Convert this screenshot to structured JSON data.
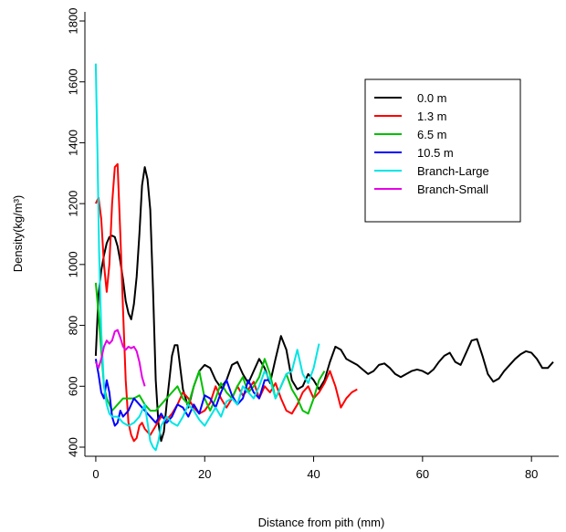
{
  "chart_data": {
    "type": "line",
    "xlabel": "Distance from pith (mm)",
    "ylabel": "Density(kg/m³)",
    "xlim": [
      -2,
      85
    ],
    "ylim": [
      370,
      1830
    ],
    "x_ticks": [
      0,
      20,
      40,
      60,
      80
    ],
    "y_ticks": [
      400,
      600,
      800,
      1000,
      1200,
      1400,
      1600,
      1800
    ],
    "grid": false,
    "legend_position": "top-right",
    "series": [
      {
        "name": "0.0 m",
        "color": "#000000",
        "x": [
          0,
          0.5,
          1,
          1.5,
          2,
          2.5,
          3,
          3.5,
          4,
          4.5,
          5,
          5.5,
          6,
          6.5,
          7,
          7.5,
          8,
          8.5,
          9,
          9.5,
          10,
          10.5,
          11,
          11.5,
          12,
          12.5,
          13,
          13.5,
          14,
          14.5,
          15,
          16,
          17,
          18,
          19,
          20,
          21,
          22,
          23,
          24,
          25,
          26,
          27,
          28,
          29,
          30,
          31,
          32,
          33,
          34,
          35,
          36,
          37,
          38,
          39,
          40,
          41,
          42,
          43,
          44,
          45,
          46,
          47,
          48,
          49,
          50,
          51,
          52,
          53,
          54,
          55,
          56,
          57,
          58,
          59,
          60,
          61,
          62,
          63,
          64,
          65,
          66,
          67,
          68,
          69,
          70,
          71,
          72,
          73,
          74,
          75,
          76,
          77,
          78,
          79,
          80,
          81,
          82,
          83,
          84
        ],
        "values": [
          700,
          900,
          980,
          1030,
          1070,
          1090,
          1095,
          1090,
          1060,
          1010,
          950,
          880,
          840,
          820,
          870,
          960,
          1100,
          1260,
          1320,
          1280,
          1180,
          920,
          620,
          480,
          420,
          450,
          540,
          620,
          700,
          735,
          735,
          590,
          530,
          600,
          650,
          670,
          660,
          620,
          595,
          620,
          670,
          680,
          640,
          610,
          650,
          690,
          660,
          610,
          690,
          765,
          720,
          620,
          590,
          600,
          640,
          620,
          590,
          620,
          680,
          730,
          720,
          690,
          680,
          670,
          655,
          640,
          650,
          670,
          675,
          660,
          640,
          630,
          640,
          650,
          655,
          650,
          640,
          655,
          680,
          700,
          710,
          680,
          670,
          710,
          750,
          755,
          700,
          640,
          615,
          625,
          650,
          670,
          690,
          705,
          715,
          710,
          690,
          660,
          660,
          680
        ]
      },
      {
        "name": "1.3 m",
        "color": "#ff0000",
        "x": [
          0,
          0.5,
          1,
          1.5,
          2,
          2.5,
          3,
          3.5,
          4,
          4.5,
          5,
          5.5,
          6,
          6.5,
          7,
          7.5,
          8,
          8.5,
          9,
          10,
          11,
          12,
          13,
          14,
          15,
          16,
          17,
          18,
          19,
          20,
          21,
          22,
          23,
          24,
          25,
          26,
          27,
          28,
          29,
          30,
          31,
          32,
          33,
          34,
          35,
          36,
          37,
          38,
          39,
          40,
          41,
          42,
          43,
          44,
          45,
          46,
          47,
          48
        ],
        "values": [
          1200,
          1220,
          1150,
          1000,
          910,
          1000,
          1200,
          1320,
          1330,
          1100,
          850,
          620,
          480,
          440,
          420,
          430,
          470,
          480,
          460,
          440,
          470,
          500,
          490,
          510,
          540,
          580,
          560,
          530,
          510,
          520,
          545,
          600,
          560,
          530,
          560,
          600,
          570,
          590,
          615,
          560,
          600,
          580,
          610,
          560,
          520,
          510,
          540,
          580,
          600,
          560,
          580,
          610,
          650,
          600,
          530,
          560,
          580,
          590
        ]
      },
      {
        "name": "6.5 m",
        "color": "#00c000",
        "x": [
          0,
          0.5,
          1,
          1.5,
          2,
          3,
          4,
          5,
          6,
          7,
          8,
          9,
          10,
          11,
          12,
          13,
          14,
          15,
          16,
          17,
          18,
          19,
          20,
          21,
          22,
          23,
          24,
          25,
          26,
          27,
          28,
          29,
          30,
          31,
          32,
          33,
          34,
          35,
          36,
          37,
          38,
          39,
          40,
          41,
          42
        ],
        "values": [
          940,
          840,
          720,
          600,
          560,
          520,
          540,
          560,
          560,
          560,
          570,
          540,
          520,
          520,
          540,
          560,
          580,
          600,
          560,
          540,
          600,
          650,
          560,
          520,
          560,
          610,
          580,
          560,
          600,
          630,
          580,
          600,
          630,
          690,
          640,
          560,
          600,
          640,
          590,
          560,
          520,
          510,
          560,
          620,
          650
        ]
      },
      {
        "name": "10.5 m",
        "color": "#0000ff",
        "x": [
          0,
          0.5,
          1,
          1.5,
          2,
          2.5,
          3,
          3.5,
          4,
          4.5,
          5,
          6,
          7,
          8,
          9,
          10,
          11,
          12,
          13,
          14,
          15,
          16,
          17,
          18,
          19,
          20,
          21,
          22,
          23,
          24,
          25,
          26,
          27,
          28,
          29,
          30,
          31,
          32
        ],
        "values": [
          690,
          640,
          580,
          560,
          620,
          580,
          500,
          470,
          480,
          520,
          500,
          520,
          560,
          540,
          520,
          500,
          480,
          510,
          480,
          500,
          540,
          530,
          500,
          540,
          510,
          570,
          560,
          530,
          580,
          620,
          570,
          540,
          560,
          620,
          580,
          560,
          620,
          620
        ]
      },
      {
        "name": "Branch-Large",
        "color": "#00e5e5",
        "x": [
          0,
          0.3,
          0.6,
          1,
          1.5,
          2,
          2.5,
          3,
          4,
          5,
          6,
          7,
          8,
          9,
          10,
          10.5,
          11,
          11.5,
          12,
          13,
          14,
          15,
          16,
          17,
          18,
          19,
          20,
          21,
          22,
          23,
          24,
          25,
          26,
          27,
          28,
          29,
          30,
          31,
          32,
          33,
          34,
          35,
          36,
          37,
          38,
          39,
          40,
          41
        ],
        "values": [
          1660,
          1380,
          1050,
          780,
          600,
          540,
          510,
          500,
          500,
          480,
          470,
          480,
          500,
          540,
          420,
          400,
          390,
          420,
          470,
          500,
          480,
          470,
          500,
          540,
          520,
          490,
          470,
          500,
          530,
          500,
          550,
          560,
          540,
          600,
          580,
          560,
          600,
          650,
          620,
          560,
          600,
          640,
          650,
          720,
          640,
          610,
          660,
          740
        ]
      },
      {
        "name": "Branch-Small",
        "color": "#e600e6",
        "x": [
          0,
          0.5,
          1,
          1.5,
          2,
          2.5,
          3,
          3.5,
          4,
          4.5,
          5,
          5.5,
          6,
          6.5,
          7,
          7.5,
          8,
          8.5,
          9
        ],
        "values": [
          680,
          660,
          690,
          730,
          750,
          740,
          750,
          780,
          785,
          760,
          730,
          720,
          730,
          725,
          730,
          715,
          680,
          630,
          600
        ]
      }
    ]
  }
}
